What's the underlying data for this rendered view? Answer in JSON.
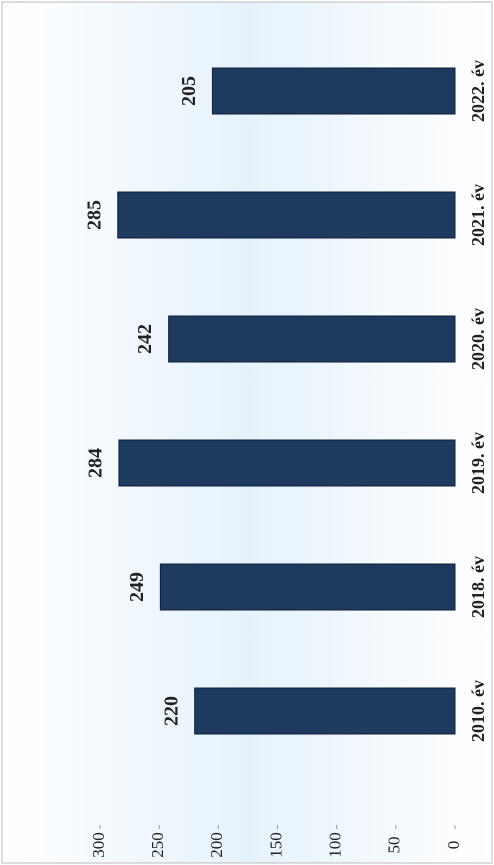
{
  "chart_data": {
    "type": "bar",
    "categories": [
      "2010. év",
      "2018. év",
      "2019. év",
      "2020. év",
      "2021. év",
      "2022. év"
    ],
    "values": [
      220,
      249,
      284,
      242,
      285,
      205
    ],
    "color": "#1f3a5f",
    "ylim": [
      0,
      300
    ],
    "yticks": [
      0,
      50,
      100,
      150,
      200,
      250,
      300
    ]
  }
}
